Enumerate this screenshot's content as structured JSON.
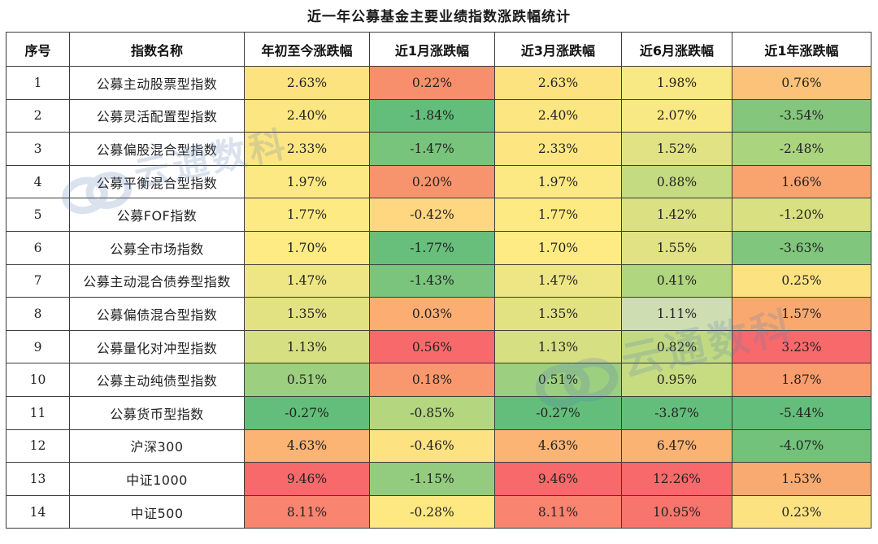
{
  "title": "近一年公募基金主要业绩指数涨跌幅统计",
  "watermark": "云通数科",
  "headers": [
    "序号",
    "指数名称",
    "年初至今涨跌幅",
    "近1月涨跌幅",
    "近3月涨跌幅",
    "近6月涨跌幅",
    "近1年涨跌幅"
  ],
  "rows": [
    {
      "idx": "1",
      "name": "公募主动股票型指数",
      "cells": [
        {
          "v": "2.63%",
          "bg": "#fce380"
        },
        {
          "v": "0.22%",
          "bg": "#f88f6c"
        },
        {
          "v": "2.63%",
          "bg": "#fce380"
        },
        {
          "v": "1.98%",
          "bg": "#f8e984"
        },
        {
          "v": "0.76%",
          "bg": "#fcc279"
        }
      ]
    },
    {
      "idx": "2",
      "name": "公募灵活配置型指数",
      "cells": [
        {
          "v": "2.40%",
          "bg": "#fce682"
        },
        {
          "v": "-1.84%",
          "bg": "#63be7b"
        },
        {
          "v": "2.40%",
          "bg": "#fce682"
        },
        {
          "v": "2.07%",
          "bg": "#f8e984"
        },
        {
          "v": "-3.54%",
          "bg": "#84c77c"
        }
      ]
    },
    {
      "idx": "3",
      "name": "公募偏股混合型指数",
      "cells": [
        {
          "v": "2.33%",
          "bg": "#fde682"
        },
        {
          "v": "-1.47%",
          "bg": "#79c47c"
        },
        {
          "v": "2.33%",
          "bg": "#fde682"
        },
        {
          "v": "1.52%",
          "bg": "#e0e283"
        },
        {
          "v": "-2.48%",
          "bg": "#abd47f"
        }
      ]
    },
    {
      "idx": "4",
      "name": "公募平衡混合型指数",
      "cells": [
        {
          "v": "1.97%",
          "bg": "#fde983"
        },
        {
          "v": "0.20%",
          "bg": "#f8946d"
        },
        {
          "v": "1.97%",
          "bg": "#fde983"
        },
        {
          "v": "0.88%",
          "bg": "#c4db81"
        },
        {
          "v": "1.66%",
          "bg": "#f9a46f"
        }
      ]
    },
    {
      "idx": "5",
      "name": "公募FOF指数",
      "cells": [
        {
          "v": "1.77%",
          "bg": "#feea83"
        },
        {
          "v": "-0.42%",
          "bg": "#fed780"
        },
        {
          "v": "1.77%",
          "bg": "#feea83"
        },
        {
          "v": "1.42%",
          "bg": "#dbe182"
        },
        {
          "v": "-1.20%",
          "bg": "#d8e082"
        }
      ]
    },
    {
      "idx": "6",
      "name": "公募全市场指数",
      "cells": [
        {
          "v": "1.70%",
          "bg": "#feeb84"
        },
        {
          "v": "-1.77%",
          "bg": "#67bf7b"
        },
        {
          "v": "1.70%",
          "bg": "#feeb84"
        },
        {
          "v": "1.55%",
          "bg": "#e1e283"
        },
        {
          "v": "-3.63%",
          "bg": "#80c67c"
        }
      ]
    },
    {
      "idx": "7",
      "name": "公募主动混合债券型指数",
      "cells": [
        {
          "v": "1.47%",
          "bg": "#eee684"
        },
        {
          "v": "-1.43%",
          "bg": "#7bc47d"
        },
        {
          "v": "1.47%",
          "bg": "#eee684"
        },
        {
          "v": "0.41%",
          "bg": "#b1d680"
        },
        {
          "v": "0.25%",
          "bg": "#fde282"
        }
      ]
    },
    {
      "idx": "8",
      "name": "公募偏债混合型指数",
      "cells": [
        {
          "v": "1.35%",
          "bg": "#e3e283"
        },
        {
          "v": "0.03%",
          "bg": "#fbad72"
        },
        {
          "v": "1.35%",
          "bg": "#e3e283"
        },
        {
          "v": "1.11%",
          "bg": "#ceddb2"
        },
        {
          "v": "1.57%",
          "bg": "#f9a970"
        }
      ]
    },
    {
      "idx": "9",
      "name": "公募量化对冲型指数",
      "cells": [
        {
          "v": "1.13%",
          "bg": "#d6df82"
        },
        {
          "v": "0.56%",
          "bg": "#f8696b"
        },
        {
          "v": "1.13%",
          "bg": "#d6df82"
        },
        {
          "v": "0.82%",
          "bg": "#c1da81"
        },
        {
          "v": "3.23%",
          "bg": "#f8696b"
        }
      ]
    },
    {
      "idx": "10",
      "name": "公募主动纯债型指数",
      "cells": [
        {
          "v": "0.51%",
          "bg": "#9ccf7f"
        },
        {
          "v": "0.18%",
          "bg": "#f9986e"
        },
        {
          "v": "0.51%",
          "bg": "#9ccf7f"
        },
        {
          "v": "0.95%",
          "bg": "#c7dc81"
        },
        {
          "v": "1.87%",
          "bg": "#f99d6e"
        }
      ]
    },
    {
      "idx": "11",
      "name": "公募货币型指数",
      "cells": [
        {
          "v": "-0.27%",
          "bg": "#63be7b"
        },
        {
          "v": "-0.85%",
          "bg": "#b3d67f"
        },
        {
          "v": "-0.27%",
          "bg": "#63be7b"
        },
        {
          "v": "-3.87%",
          "bg": "#63be7b"
        },
        {
          "v": "-5.44%",
          "bg": "#63be7b"
        }
      ]
    },
    {
      "idx": "12",
      "name": "沪深300",
      "cells": [
        {
          "v": "4.63%",
          "bg": "#fcb474"
        },
        {
          "v": "-0.46%",
          "bg": "#fde282"
        },
        {
          "v": "4.63%",
          "bg": "#fcb474"
        },
        {
          "v": "6.47%",
          "bg": "#fbb373"
        },
        {
          "v": "-4.07%",
          "bg": "#72c27c"
        }
      ]
    },
    {
      "idx": "13",
      "name": "中证1000",
      "cells": [
        {
          "v": "9.46%",
          "bg": "#f8696b"
        },
        {
          "v": "-1.15%",
          "bg": "#93cc7e"
        },
        {
          "v": "9.46%",
          "bg": "#f8696b"
        },
        {
          "v": "12.26%",
          "bg": "#f8696b"
        },
        {
          "v": "1.53%",
          "bg": "#f9aa71"
        }
      ]
    },
    {
      "idx": "14",
      "name": "中证500",
      "cells": [
        {
          "v": "8.11%",
          "bg": "#f98470"
        },
        {
          "v": "-0.28%",
          "bg": "#fde882"
        },
        {
          "v": "8.11%",
          "bg": "#f98470"
        },
        {
          "v": "10.95%",
          "bg": "#f8756d"
        },
        {
          "v": "0.23%",
          "bg": "#fde282"
        }
      ]
    }
  ]
}
